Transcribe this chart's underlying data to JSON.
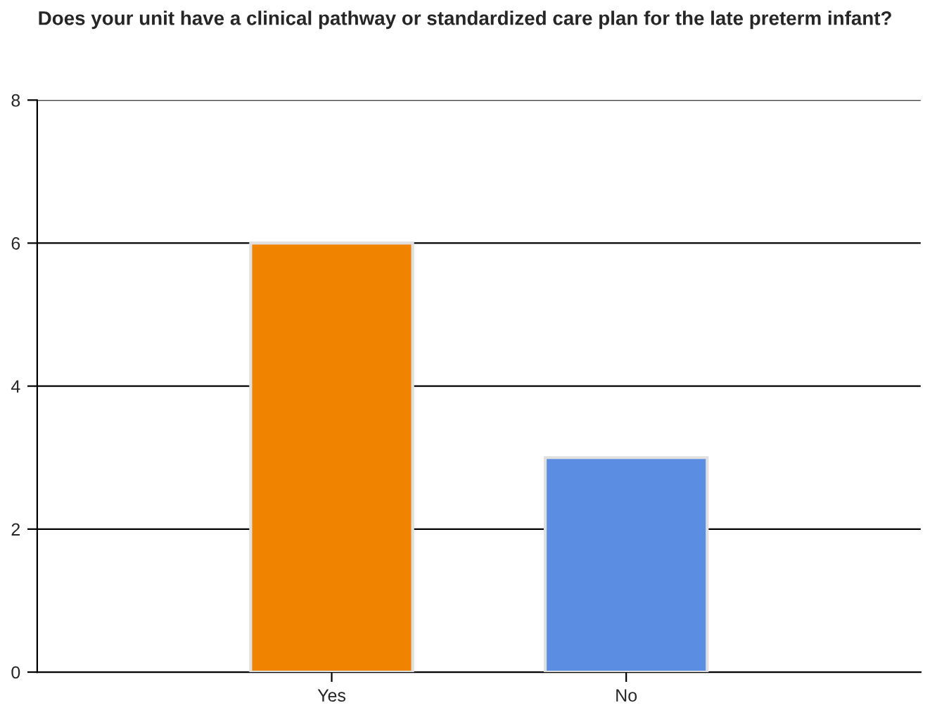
{
  "chart_data": {
    "type": "bar",
    "title": "Does your unit have a clinical pathway or standardized care plan for the late preterm infant?",
    "categories": [
      "Yes",
      "No"
    ],
    "values": [
      6,
      3
    ],
    "colors": [
      "#f08400",
      "#5b8ee2"
    ],
    "ylim": [
      0,
      8
    ],
    "yticks": [
      0,
      2,
      4,
      6,
      8
    ],
    "grid": "y"
  }
}
